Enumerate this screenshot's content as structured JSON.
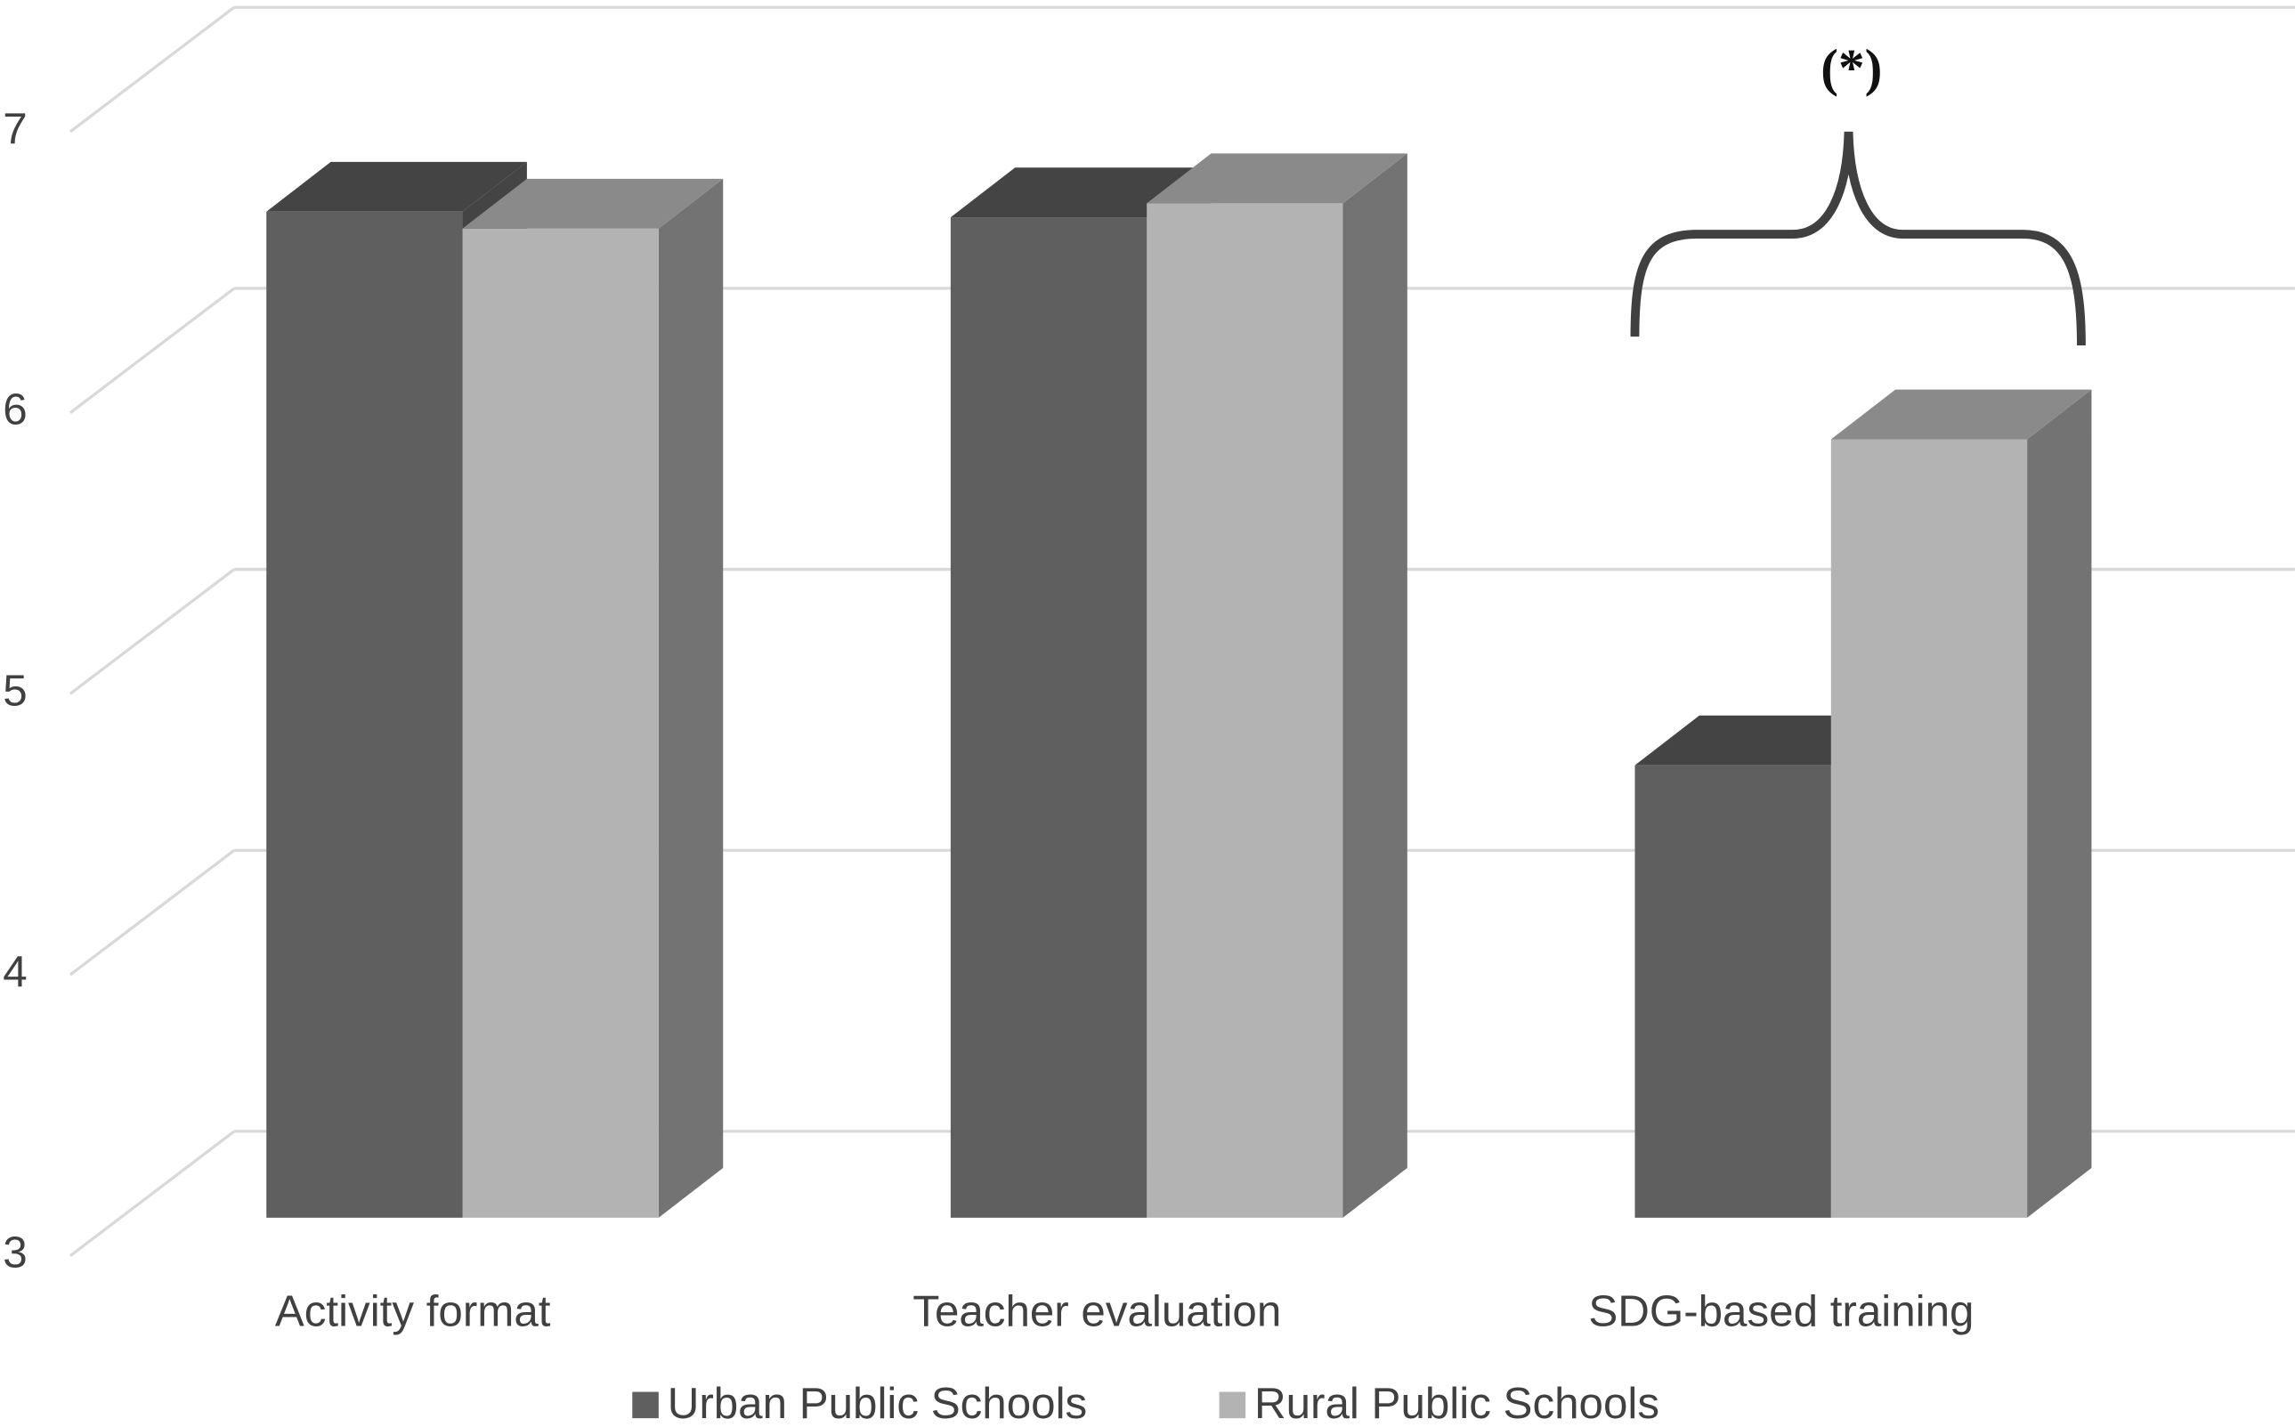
{
  "chart_data": {
    "type": "bar3d",
    "categories": [
      "Activity format",
      "Teacher evaluation",
      "SDG-based training"
    ],
    "series": [
      {
        "name": "Urban Public Schools",
        "color": "#5f5f5f",
        "values": [
          6.58,
          6.56,
          4.61
        ]
      },
      {
        "name": "Rural Public Schools",
        "color": "#b3b3b3",
        "values": [
          6.52,
          6.61,
          5.77
        ]
      }
    ],
    "ylim": [
      3,
      7
    ],
    "yticks": [
      3,
      4,
      5,
      6,
      7
    ],
    "grid": true,
    "annotation": "(*)",
    "legend": "bottom"
  }
}
